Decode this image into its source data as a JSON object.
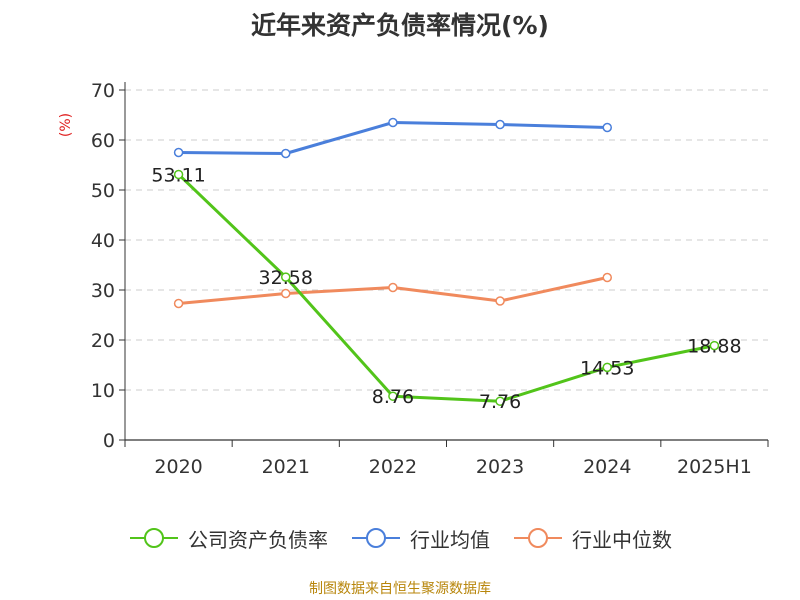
{
  "chart_data": {
    "type": "line",
    "title": "近年来资产负债率情况(%)",
    "ylabel": "(%)",
    "xlabel": "",
    "categories": [
      "2020",
      "2021",
      "2022",
      "2023",
      "2024",
      "2025H1"
    ],
    "ylim": [
      0,
      70
    ],
    "yticks": [
      0,
      10,
      20,
      30,
      40,
      50,
      60,
      70
    ],
    "grid": true,
    "legend_position": "bottom",
    "series": [
      {
        "name": "公司资产负债率",
        "color": "#52c41a",
        "values": [
          53.11,
          32.58,
          8.76,
          7.76,
          14.53,
          18.88
        ],
        "labels": [
          "53.11",
          "32.58",
          "8.76",
          "7.76",
          "14.53",
          "18.88"
        ]
      },
      {
        "name": "行业均值",
        "color": "#4a7fdb",
        "values": [
          57.5,
          57.3,
          63.5,
          63.1,
          62.5,
          null
        ]
      },
      {
        "name": "行业中位数",
        "color": "#f08a5d",
        "values": [
          27.3,
          29.3,
          30.5,
          27.8,
          32.5,
          null
        ]
      }
    ]
  },
  "source_note": "制图数据来自恒生聚源数据库"
}
